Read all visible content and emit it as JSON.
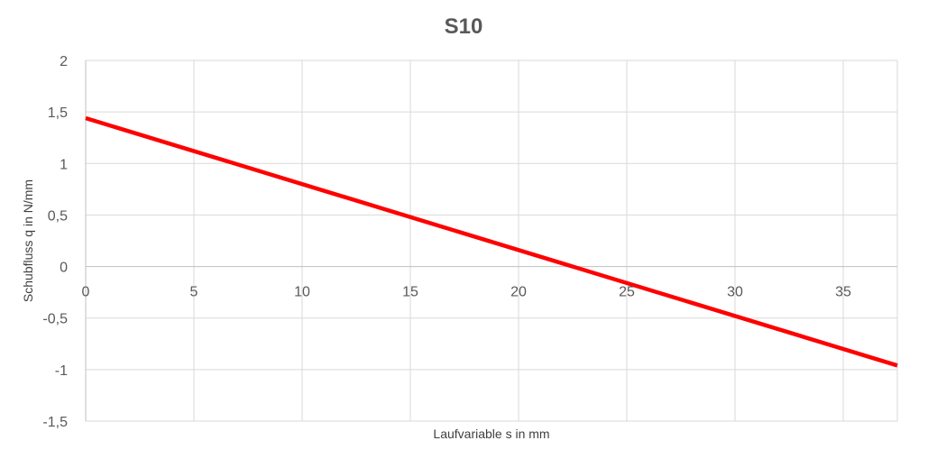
{
  "chart_data": {
    "type": "line",
    "title": "S10",
    "xlabel": "Laufvariable s in mm",
    "ylabel": "Schubfluss q in N/mm",
    "xlim": [
      0,
      37.5
    ],
    "ylim": [
      -1.5,
      2
    ],
    "x_ticks": [
      0,
      5,
      10,
      15,
      20,
      25,
      30,
      35
    ],
    "x_tick_labels": [
      "0",
      "5",
      "10",
      "15",
      "20",
      "25",
      "30",
      "35"
    ],
    "y_ticks": [
      2,
      1.5,
      1,
      0.5,
      0,
      -0.5,
      -1,
      -1.5
    ],
    "y_tick_labels": [
      "2",
      "1,5",
      "1",
      "0,5",
      "0",
      "-0,5",
      "-1",
      "-1,5"
    ],
    "grid": true,
    "legend": "none",
    "series": [
      {
        "color": "#ff0000",
        "x": [
          0,
          37.5
        ],
        "y": [
          1.44,
          -0.96
        ]
      }
    ]
  }
}
